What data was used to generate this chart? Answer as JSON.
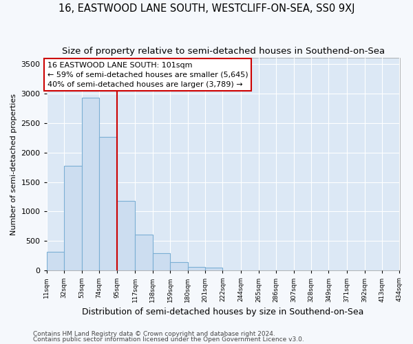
{
  "title": "16, EASTWOOD LANE SOUTH, WESTCLIFF-ON-SEA, SS0 9XJ",
  "subtitle": "Size of property relative to semi-detached houses in Southend-on-Sea",
  "xlabel": "Distribution of semi-detached houses by size in Southend-on-Sea",
  "ylabel": "Number of semi-detached properties",
  "footnote1": "Contains HM Land Registry data © Crown copyright and database right 2024.",
  "footnote2": "Contains public sector information licensed under the Open Government Licence v3.0.",
  "bar_edges": [
    11,
    32,
    53,
    74,
    95,
    117,
    138,
    159,
    180,
    201,
    222,
    244,
    265,
    286,
    307,
    328,
    349,
    371,
    392,
    413,
    434
  ],
  "bar_heights": [
    320,
    1775,
    2930,
    2270,
    1175,
    610,
    290,
    140,
    65,
    50,
    0,
    0,
    0,
    0,
    0,
    0,
    0,
    0,
    0,
    0
  ],
  "bar_color": "#ccddf0",
  "bar_edge_color": "#7bafd4",
  "vline_x": 95,
  "vline_color": "#cc0000",
  "annotation_line1": "16 EASTWOOD LANE SOUTH: 101sqm",
  "annotation_line2": "← 59% of semi-detached houses are smaller (5,645)",
  "annotation_line3": "40% of semi-detached houses are larger (3,789) →",
  "annotation_box_color": "#cc0000",
  "ylim": [
    0,
    3600
  ],
  "yticks": [
    0,
    500,
    1000,
    1500,
    2000,
    2500,
    3000,
    3500
  ],
  "fig_bg_color": "#f5f8fc",
  "plot_bg_color": "#dce8f5",
  "grid_color": "#ffffff",
  "title_fontsize": 10.5,
  "subtitle_fontsize": 9.5,
  "footnote_fontsize": 6.5
}
